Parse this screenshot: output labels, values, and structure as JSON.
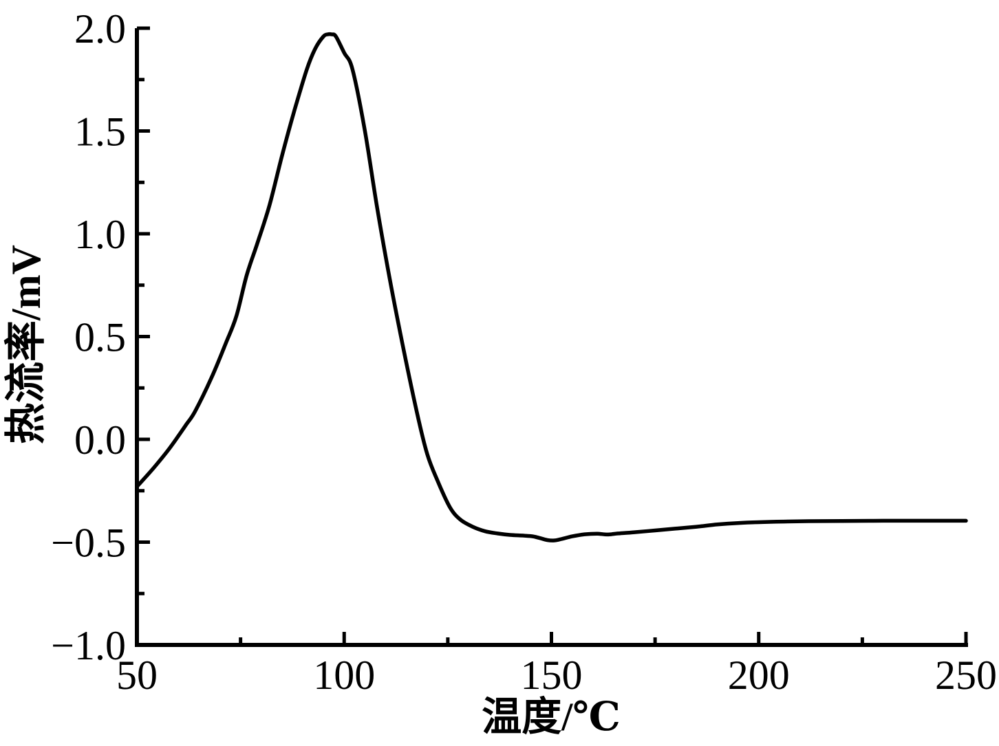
{
  "colors": {
    "background": "#ffffff",
    "ink": "#000000"
  },
  "chart_data": {
    "type": "line",
    "title": "",
    "xlabel": "温度/℃",
    "ylabel": "热流率/mV",
    "grid": false,
    "legend": "none",
    "x_axis": {
      "min": 50,
      "max": 250,
      "major_ticks": [
        50,
        100,
        150,
        200,
        250
      ],
      "tick_labels": [
        "50",
        "100",
        "150",
        "200",
        "250"
      ],
      "minor_ticks": [
        75,
        125,
        175,
        225
      ]
    },
    "y_axis": {
      "min": -1.0,
      "max": 2.0,
      "major_ticks": [
        2.0,
        1.5,
        1.0,
        0.5,
        0.0,
        -0.5,
        -1.0
      ],
      "tick_labels": [
        "2.0",
        "1.5",
        "1.0",
        "0.5",
        "0.0",
        "−0.5",
        "−1.0"
      ],
      "minor_ticks": [
        1.75,
        1.25,
        0.75,
        0.25,
        -0.25,
        -0.75
      ]
    },
    "series": [
      {
        "color": "#000000",
        "x": [
          50,
          54,
          58,
          62,
          64,
          68,
          71.5,
          74,
          76.5,
          79,
          82,
          85,
          88,
          91,
          93,
          95,
          96,
          97,
          98,
          100,
          102,
          105,
          108,
          111,
          114,
          117.5,
          120,
          122.5,
          125.5,
          128,
          131,
          134,
          137,
          140,
          143,
          145.5,
          147.5,
          149,
          150.5,
          152,
          155,
          158,
          161,
          163.5,
          166,
          170,
          175,
          180,
          185,
          190,
          195,
          200,
          206,
          212,
          220,
          230,
          240,
          250
        ],
        "y": [
          -0.23,
          -0.14,
          -0.04,
          0.075,
          0.135,
          0.3,
          0.47,
          0.6,
          0.8,
          0.95,
          1.14,
          1.38,
          1.6,
          1.8,
          1.9,
          1.96,
          1.97,
          1.97,
          1.96,
          1.88,
          1.8,
          1.5,
          1.12,
          0.78,
          0.47,
          0.135,
          -0.07,
          -0.2,
          -0.33,
          -0.39,
          -0.425,
          -0.447,
          -0.458,
          -0.465,
          -0.468,
          -0.472,
          -0.482,
          -0.49,
          -0.492,
          -0.487,
          -0.472,
          -0.462,
          -0.459,
          -0.463,
          -0.458,
          -0.452,
          -0.443,
          -0.434,
          -0.425,
          -0.414,
          -0.407,
          -0.403,
          -0.4,
          -0.398,
          -0.397,
          -0.396,
          -0.396,
          -0.396
        ]
      }
    ],
    "annotations_readout": {
      "peak": {
        "x": 96.5,
        "y": 1.97
      },
      "local_minimum": {
        "x": 150,
        "y": -0.49
      },
      "tail_level": -0.4,
      "start_value_at_50C": -0.23
    }
  }
}
